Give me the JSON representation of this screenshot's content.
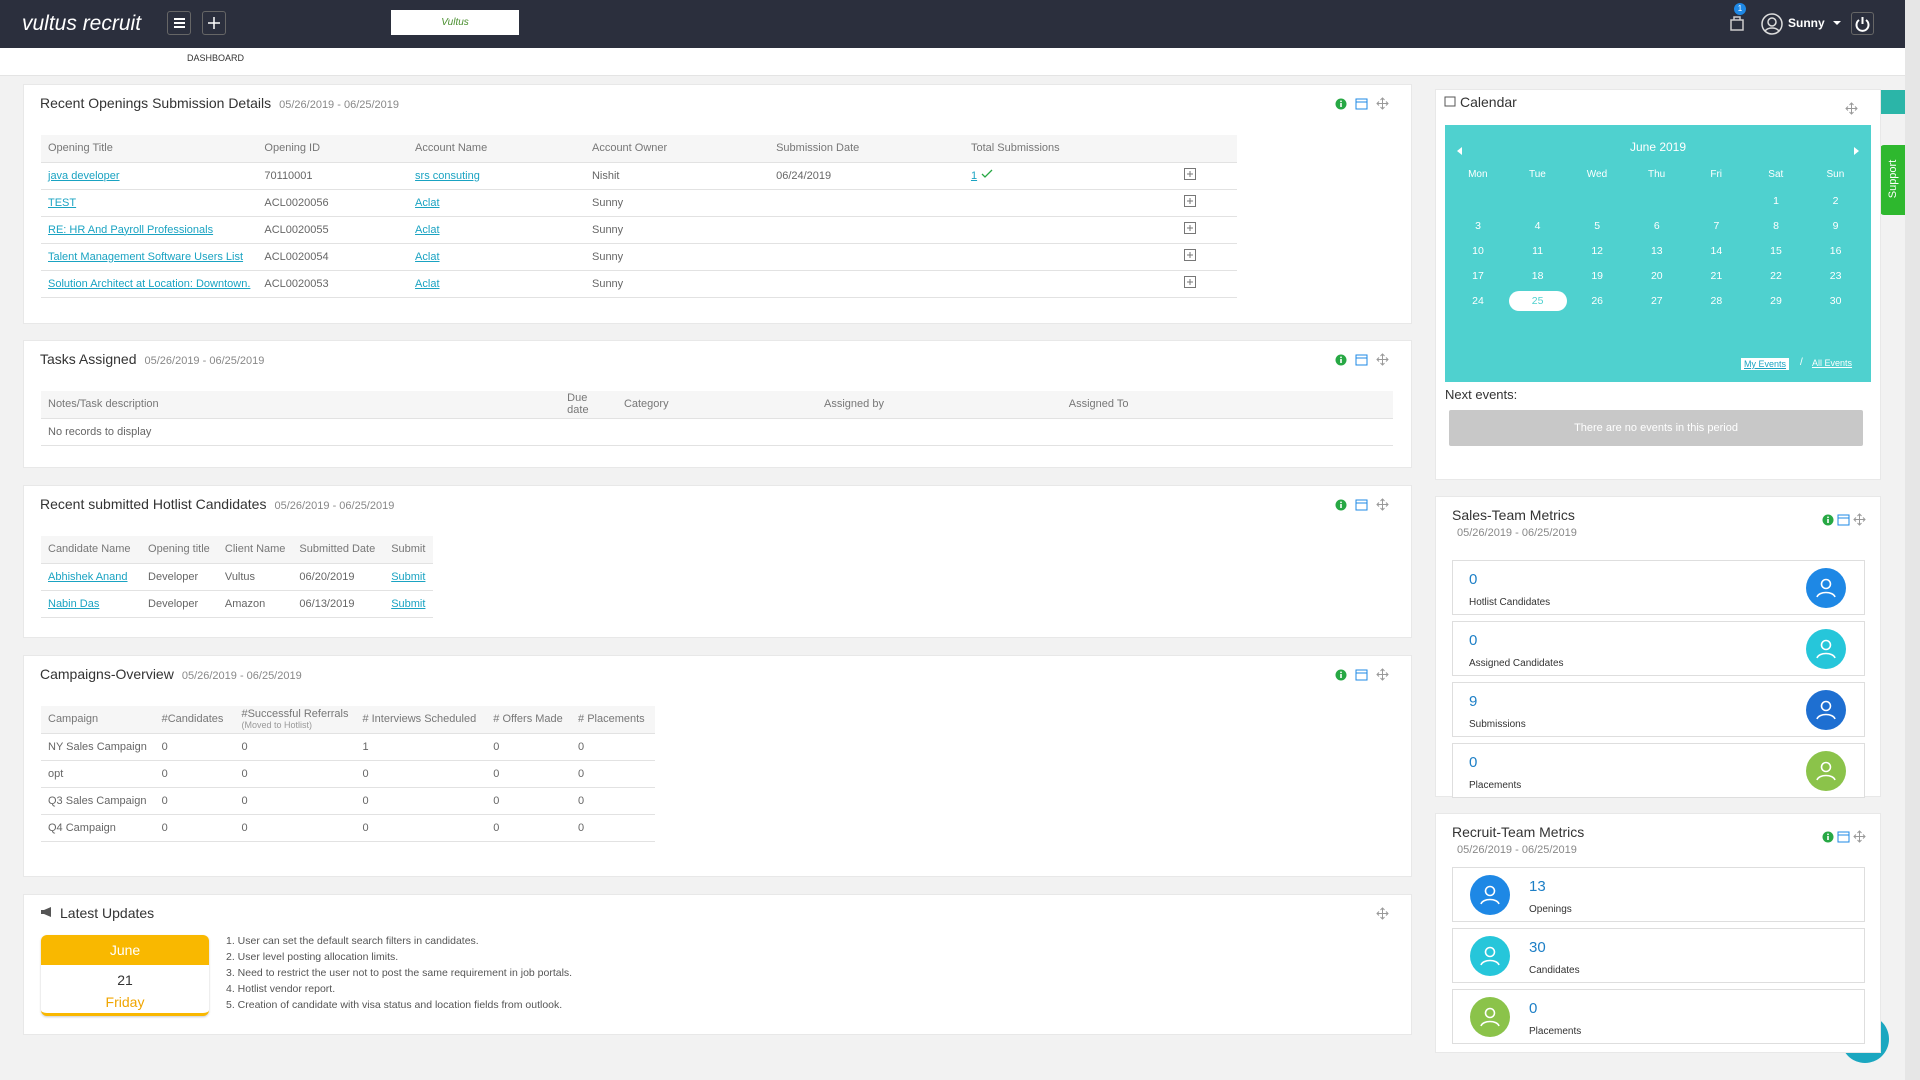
{
  "header": {
    "logo": "vultus recruit",
    "brand_logo": "Vultus",
    "notification_count": "1",
    "user_name": "Sunny",
    "breadcrumb": "DASHBOARD",
    "support_tab": "Support"
  },
  "openings": {
    "title": "Recent Openings Submission Details",
    "date_range": "05/26/2019 - 06/25/2019",
    "columns": [
      "Opening Title",
      "Opening ID",
      "Account Name",
      "Account Owner",
      "Submission Date",
      "Total Submissions"
    ],
    "link_columns": [
      0,
      2,
      5
    ],
    "rows": [
      [
        "java developer",
        "70110001",
        "srs consuting",
        "Nishit",
        "06/24/2019",
        "1"
      ],
      [
        "TEST",
        "ACL0020056",
        "Aclat",
        "Sunny",
        null,
        null
      ],
      [
        "RE: HR And Payroll Professionals",
        "ACL0020055",
        "Aclat",
        "Sunny",
        null,
        null
      ],
      [
        "Talent Management Software Users List",
        "ACL0020054",
        "Aclat",
        "Sunny",
        null,
        null
      ],
      [
        "Solution Architect at Location: Downtown.",
        "ACL0020053",
        "Aclat",
        "Sunny",
        null,
        null
      ]
    ]
  },
  "tasks": {
    "title": "Tasks Assigned",
    "date_range": "05/26/2019 - 06/25/2019",
    "columns": [
      "Notes/Task description",
      "Due date",
      "Category",
      "Assigned by",
      "Assigned To"
    ],
    "empty_message": "No records to display"
  },
  "hotlist": {
    "title": "Recent submitted Hotlist Candidates",
    "date_range": "05/26/2019 - 06/25/2019",
    "columns": [
      "Candidate Name",
      "Opening title",
      "Client Name",
      "Submitted Date",
      "Submit"
    ],
    "link_columns": [
      0,
      4
    ],
    "rows": [
      [
        "Abhishek Anand",
        "Developer",
        "Vultus",
        "06/20/2019",
        "Submit"
      ],
      [
        "Nabin Das",
        "Developer",
        "Amazon",
        "06/13/2019",
        "Submit"
      ]
    ]
  },
  "campaigns": {
    "title": "Campaigns-Overview",
    "date_range": "05/26/2019 - 06/25/2019",
    "columns": [
      "Campaign",
      "#Candidates",
      {
        "label": "#Successful Referrals",
        "note": "(Moved to Hotlist)"
      },
      "# Interviews Scheduled",
      "# Offers Made",
      "# Placements"
    ],
    "link_columns": [],
    "rows": [
      [
        "NY Sales Campaign",
        "0",
        "0",
        "1",
        "0",
        "0"
      ],
      [
        "opt",
        "0",
        "0",
        "0",
        "0",
        "0"
      ],
      [
        "Q3 Sales Campaign",
        "0",
        "0",
        "0",
        "0",
        "0"
      ],
      [
        "Q4 Campaign",
        "0",
        "0",
        "0",
        "0",
        "0"
      ]
    ]
  },
  "latest_updates": {
    "title": "Latest Updates",
    "month": "June",
    "day": "21",
    "weekday": "Friday",
    "items": [
      "1. User can set the default search filters in candidates.",
      "2. User level posting allocation limits.",
      "3. Need to restrict the user not to post the same requirement in job portals.",
      "4. Hotlist vendor report.",
      "5. Creation of candidate with visa status and location fields from outlook."
    ]
  },
  "calendar": {
    "title": "Calendar",
    "month_title": "June 2019",
    "weekdays": [
      "Mon",
      "Tue",
      "Wed",
      "Thu",
      "Fri",
      "Sat",
      "Sun"
    ],
    "weeks": [
      [
        null,
        null,
        null,
        null,
        null,
        "1",
        "2"
      ],
      [
        "3",
        "4",
        "5",
        "6",
        "7",
        "8",
        "9"
      ],
      [
        "10",
        "11",
        "12",
        "13",
        "14",
        "15",
        "16"
      ],
      [
        "17",
        "18",
        "19",
        "20",
        "21",
        "22",
        "23"
      ],
      [
        "24",
        {
          "label": "25",
          "selected": true
        },
        "26",
        "27",
        "28",
        "29",
        "30"
      ]
    ],
    "my_events": "My Events",
    "separator": "/",
    "all_events": "All Events",
    "next_events_label": "Next events:",
    "no_events": "There are no events in this period"
  },
  "sales_metrics": {
    "title": "Sales-Team Metrics",
    "date_range": "05/26/2019 - 06/25/2019",
    "items": [
      {
        "value": "0",
        "label": "Hotlist Candidates",
        "color": "#1e88e5"
      },
      {
        "value": "0",
        "label": "Assigned Candidates",
        "color": "#26c6da"
      },
      {
        "value": "9",
        "label": "Submissions",
        "color": "#1e6fd1"
      },
      {
        "value": "0",
        "label": "Placements",
        "color": "#8bc34a"
      }
    ]
  },
  "recruit_metrics": {
    "title": "Recruit-Team Metrics",
    "date_range": "05/26/2019 - 06/25/2019",
    "items": [
      {
        "value": "13",
        "label": "Openings",
        "color": "#1e88e5"
      },
      {
        "value": "30",
        "label": "Candidates",
        "color": "#26c6da"
      },
      {
        "value": "0",
        "label": "Placements",
        "color": "#8bc34a"
      }
    ]
  }
}
